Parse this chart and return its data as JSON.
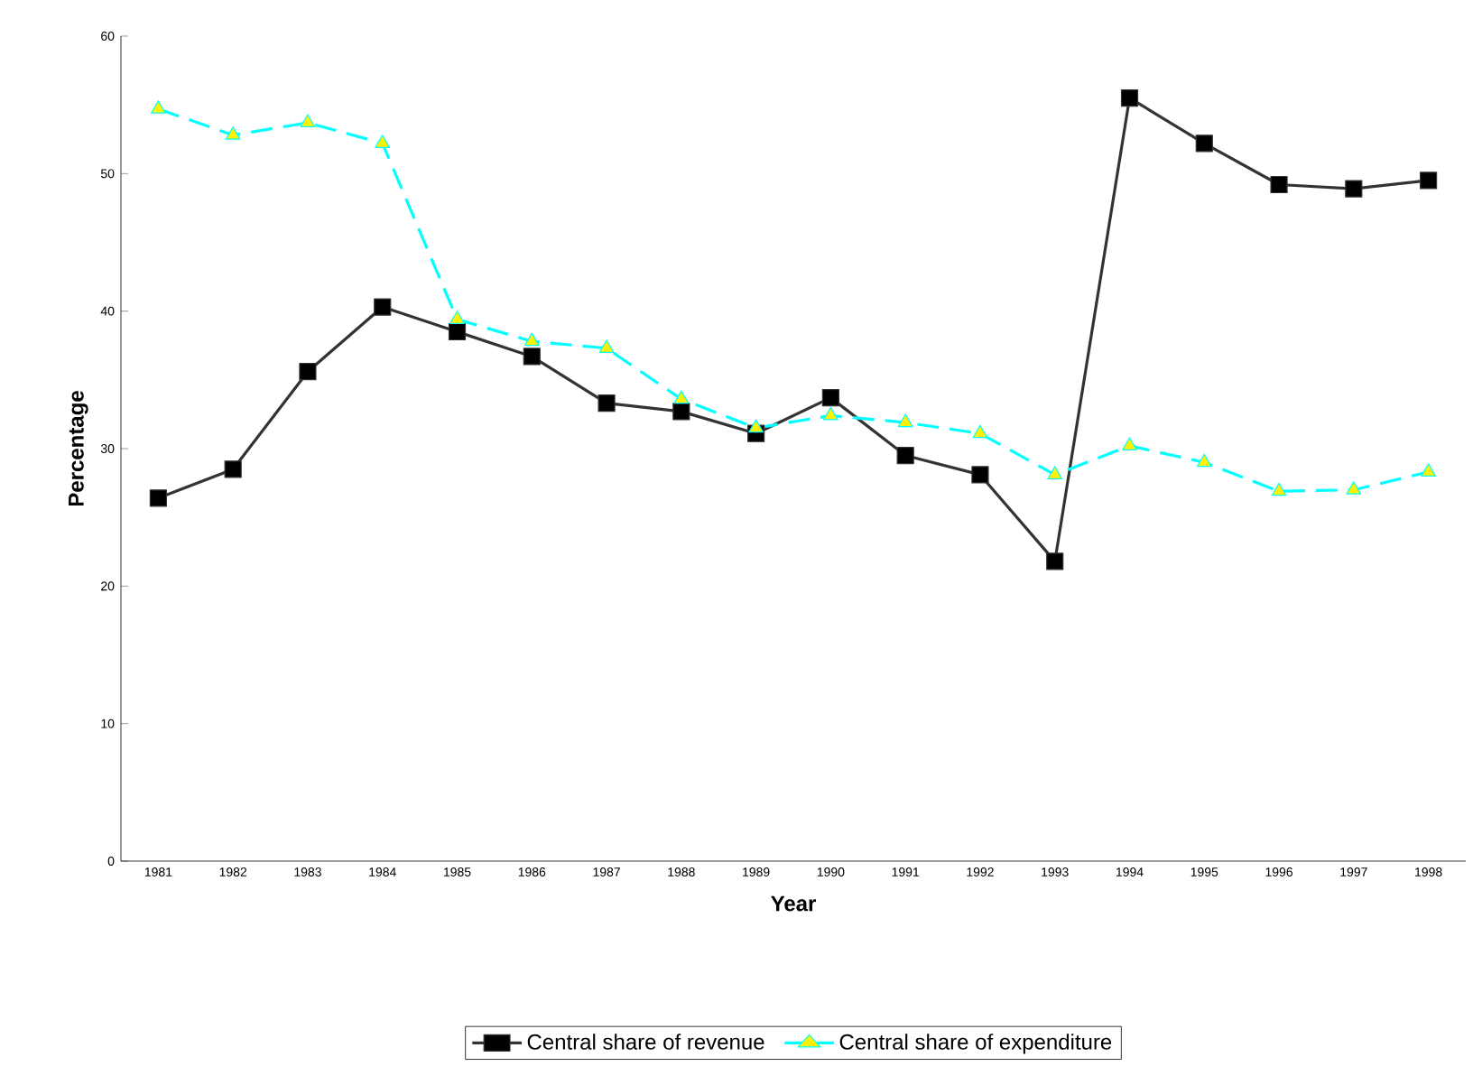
{
  "chart_data": {
    "type": "line",
    "xlabel": "Year",
    "ylabel": "Percentage",
    "categories": [
      "1981",
      "1982",
      "1983",
      "1984",
      "1985",
      "1986",
      "1987",
      "1988",
      "1989",
      "1990",
      "1991",
      "1992",
      "1993",
      "1994",
      "1995",
      "1996",
      "1997",
      "1998"
    ],
    "series": [
      {
        "name": "Central share of revenue",
        "color": "#333333",
        "marker": "square",
        "line_style": "solid",
        "values": [
          26.4,
          28.5,
          35.6,
          40.3,
          38.5,
          36.7,
          33.3,
          32.7,
          31.1,
          33.7,
          29.5,
          28.1,
          21.8,
          55.5,
          52.2,
          49.2,
          48.9,
          49.5
        ]
      },
      {
        "name": "Central share of expenditure",
        "color": "#00ffff",
        "marker": "triangle",
        "line_style": "dashed",
        "values": [
          54.7,
          52.8,
          53.7,
          52.2,
          39.4,
          37.8,
          37.3,
          33.6,
          31.5,
          32.4,
          31.9,
          31.1,
          28.1,
          30.2,
          29.0,
          26.9,
          27.0,
          28.3
        ]
      }
    ],
    "ylim": [
      0,
      60
    ],
    "yticks": [
      0,
      10,
      20,
      30,
      40,
      50,
      60
    ],
    "grid": false,
    "legend": "bottom"
  }
}
